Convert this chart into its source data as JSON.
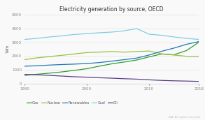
{
  "title": "Electricity generation by source, OECD",
  "ylabel": "TWh",
  "xlim": [
    1990,
    2018
  ],
  "ylim": [
    0,
    5000
  ],
  "yticks": [
    0,
    1000,
    2000,
    3000,
    4000,
    5000
  ],
  "xticks": [
    1990,
    2000,
    2010,
    2018
  ],
  "background_color": "#f9f9f9",
  "watermark": "IEA. All rights reserved.",
  "series": {
    "Gas": {
      "color": "#2ca02c",
      "lw": 0.9,
      "data_x": [
        1990,
        1992,
        1994,
        1996,
        1998,
        2000,
        2002,
        2004,
        2006,
        2008,
        2010,
        2012,
        2014,
        2016,
        2018
      ],
      "data_y": [
        620,
        700,
        780,
        870,
        980,
        1100,
        1280,
        1450,
        1580,
        1720,
        1950,
        2150,
        2100,
        2400,
        3000
      ]
    },
    "Nuclear": {
      "color": "#98c140",
      "lw": 0.9,
      "data_x": [
        1990,
        1992,
        1994,
        1996,
        1998,
        2000,
        2002,
        2004,
        2006,
        2008,
        2010,
        2012,
        2014,
        2016,
        2018
      ],
      "data_y": [
        1750,
        1880,
        1970,
        2060,
        2160,
        2260,
        2290,
        2330,
        2290,
        2330,
        2370,
        2170,
        2080,
        1990,
        1960
      ]
    },
    "Renewables": {
      "color": "#1f77b4",
      "lw": 0.9,
      "data_x": [
        1990,
        1992,
        1994,
        1996,
        1998,
        2000,
        2002,
        2004,
        2006,
        2008,
        2010,
        2012,
        2014,
        2016,
        2018
      ],
      "data_y": [
        1280,
        1310,
        1360,
        1400,
        1430,
        1470,
        1540,
        1640,
        1750,
        1860,
        2080,
        2350,
        2580,
        2850,
        3050
      ]
    },
    "Coal": {
      "color": "#7ecfdd",
      "lw": 0.9,
      "data_x": [
        1990,
        1992,
        1994,
        1996,
        1998,
        2000,
        2002,
        2004,
        2006,
        2008,
        2010,
        2012,
        2014,
        2016,
        2018
      ],
      "data_y": [
        3200,
        3280,
        3380,
        3460,
        3560,
        3620,
        3680,
        3730,
        3820,
        3980,
        3580,
        3500,
        3380,
        3280,
        3200
      ]
    },
    "Oil": {
      "color": "#5a3e8a",
      "lw": 0.9,
      "data_x": [
        1990,
        1992,
        1994,
        1996,
        1998,
        2000,
        2002,
        2004,
        2006,
        2008,
        2010,
        2012,
        2014,
        2016,
        2018
      ],
      "data_y": [
        690,
        660,
        620,
        570,
        520,
        490,
        450,
        420,
        380,
        350,
        300,
        260,
        230,
        210,
        185
      ]
    }
  }
}
